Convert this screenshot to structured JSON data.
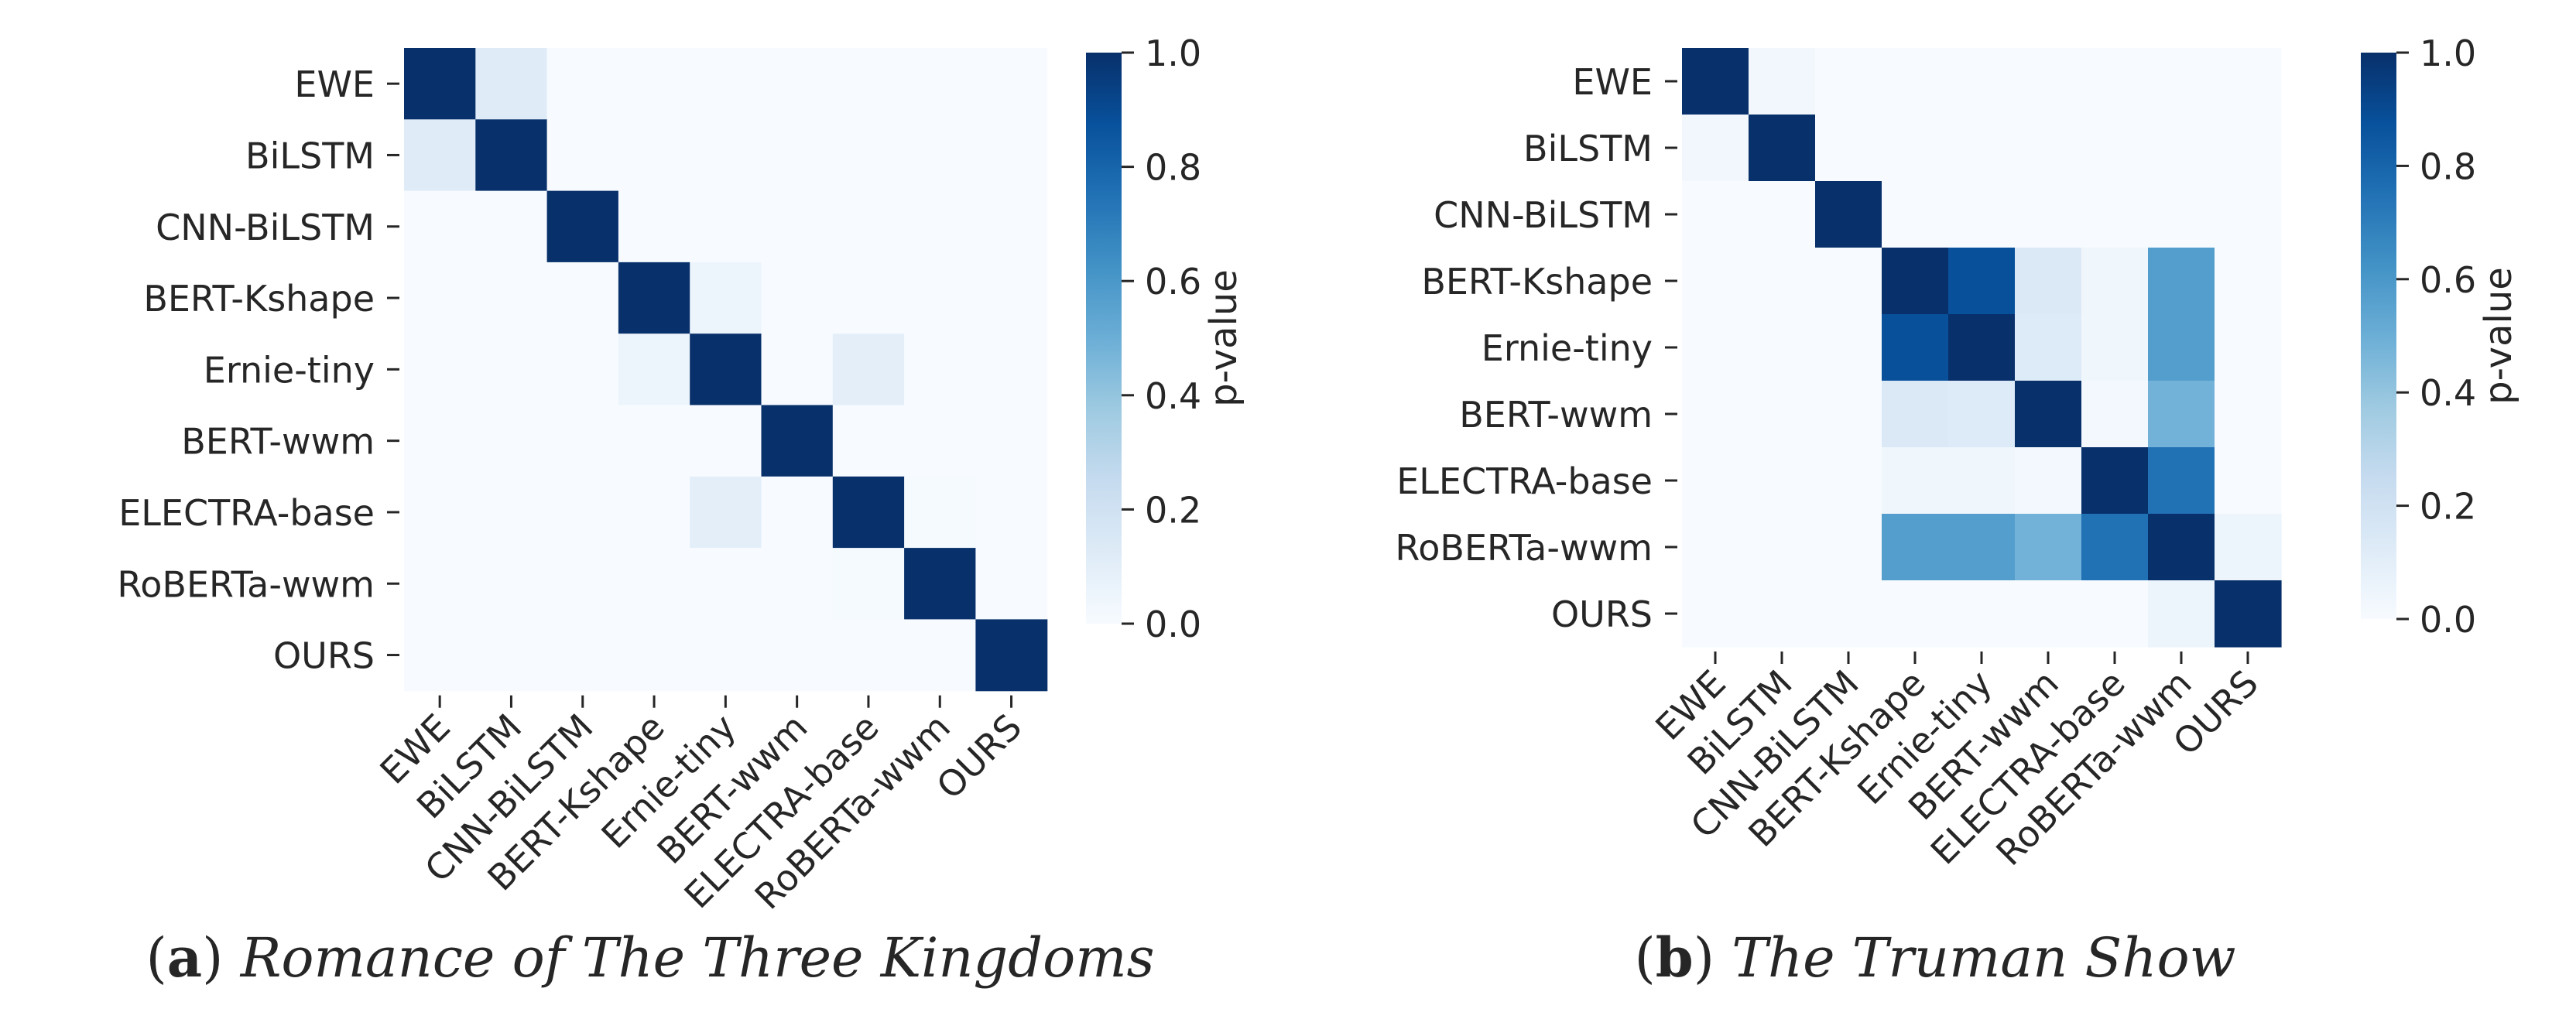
{
  "figure": {
    "panels": [
      {
        "label": "(a)",
        "label_letter": "a",
        "caption": "Romance of The Three Kingdoms"
      },
      {
        "label": "(b)",
        "label_letter": "b",
        "caption": "The Truman Show"
      }
    ]
  },
  "chart_data": [
    {
      "type": "heatmap",
      "title": "",
      "caption": "Romance of The Three Kingdoms",
      "row_labels": [
        "EWE",
        "BiLSTM",
        "CNN-BiLSTM",
        "BERT-Kshape",
        "Ernie-tiny",
        "BERT-wwm",
        "ELECTRA-base",
        "RoBERTa-wwm",
        "OURS"
      ],
      "col_labels": [
        "EWE",
        "BiLSTM",
        "CNN-BiLSTM",
        "BERT-Kshape",
        "Ernie-tiny",
        "BERT-wwm",
        "ELECTRA-base",
        "RoBERTa-wwm",
        "OURS"
      ],
      "values": [
        [
          1.0,
          0.12,
          0.0,
          0.0,
          0.0,
          0.0,
          0.0,
          0.0,
          0.0
        ],
        [
          0.12,
          1.0,
          0.0,
          0.0,
          0.0,
          0.0,
          0.0,
          0.0,
          0.0
        ],
        [
          0.0,
          0.0,
          1.0,
          0.0,
          0.0,
          0.0,
          0.0,
          0.0,
          0.0
        ],
        [
          0.0,
          0.0,
          0.0,
          1.0,
          0.05,
          0.0,
          0.0,
          0.0,
          0.0
        ],
        [
          0.0,
          0.0,
          0.0,
          0.05,
          1.0,
          0.0,
          0.1,
          0.0,
          0.0
        ],
        [
          0.0,
          0.0,
          0.0,
          0.0,
          0.0,
          1.0,
          0.0,
          0.0,
          0.0
        ],
        [
          0.0,
          0.0,
          0.0,
          0.0,
          0.1,
          0.0,
          1.0,
          0.01,
          0.0
        ],
        [
          0.0,
          0.0,
          0.0,
          0.0,
          0.0,
          0.0,
          0.01,
          1.0,
          0.0
        ],
        [
          0.0,
          0.0,
          0.0,
          0.0,
          0.0,
          0.0,
          0.0,
          0.0,
          1.0
        ]
      ],
      "colorbar": {
        "label": "p-value",
        "min": 0.0,
        "max": 1.0,
        "ticks": [
          "0.0",
          "0.2",
          "0.4",
          "0.6",
          "0.8",
          "1.0"
        ],
        "colormap": "Blues"
      }
    },
    {
      "type": "heatmap",
      "title": "",
      "caption": "The Truman Show",
      "row_labels": [
        "EWE",
        "BiLSTM",
        "CNN-BiLSTM",
        "BERT-Kshape",
        "Ernie-tiny",
        "BERT-wwm",
        "ELECTRA-base",
        "RoBERTa-wwm",
        "OURS"
      ],
      "col_labels": [
        "EWE",
        "BiLSTM",
        "CNN-BiLSTM",
        "BERT-Kshape",
        "Ernie-tiny",
        "BERT-wwm",
        "ELECTRA-base",
        "RoBERTa-wwm",
        "OURS"
      ],
      "values": [
        [
          1.0,
          0.03,
          0.0,
          0.0,
          0.0,
          0.0,
          0.0,
          0.0,
          0.0
        ],
        [
          0.03,
          1.0,
          0.0,
          0.0,
          0.0,
          0.0,
          0.0,
          0.0,
          0.0
        ],
        [
          0.0,
          0.0,
          1.0,
          0.0,
          0.0,
          0.0,
          0.0,
          0.0,
          0.0
        ],
        [
          0.0,
          0.0,
          0.0,
          1.0,
          0.88,
          0.14,
          0.04,
          0.57,
          0.0
        ],
        [
          0.0,
          0.0,
          0.0,
          0.88,
          1.0,
          0.13,
          0.04,
          0.57,
          0.0
        ],
        [
          0.0,
          0.0,
          0.0,
          0.14,
          0.13,
          1.0,
          0.02,
          0.48,
          0.0
        ],
        [
          0.0,
          0.0,
          0.0,
          0.04,
          0.04,
          0.02,
          1.0,
          0.75,
          0.0
        ],
        [
          0.0,
          0.0,
          0.0,
          0.57,
          0.57,
          0.48,
          0.75,
          1.0,
          0.05
        ],
        [
          0.0,
          0.0,
          0.0,
          0.0,
          0.0,
          0.0,
          0.0,
          0.05,
          1.0
        ]
      ],
      "colorbar": {
        "label": "p-value",
        "min": 0.0,
        "max": 1.0,
        "ticks": [
          "0.0",
          "0.2",
          "0.4",
          "0.6",
          "0.8",
          "1.0"
        ],
        "colormap": "Blues"
      }
    }
  ]
}
